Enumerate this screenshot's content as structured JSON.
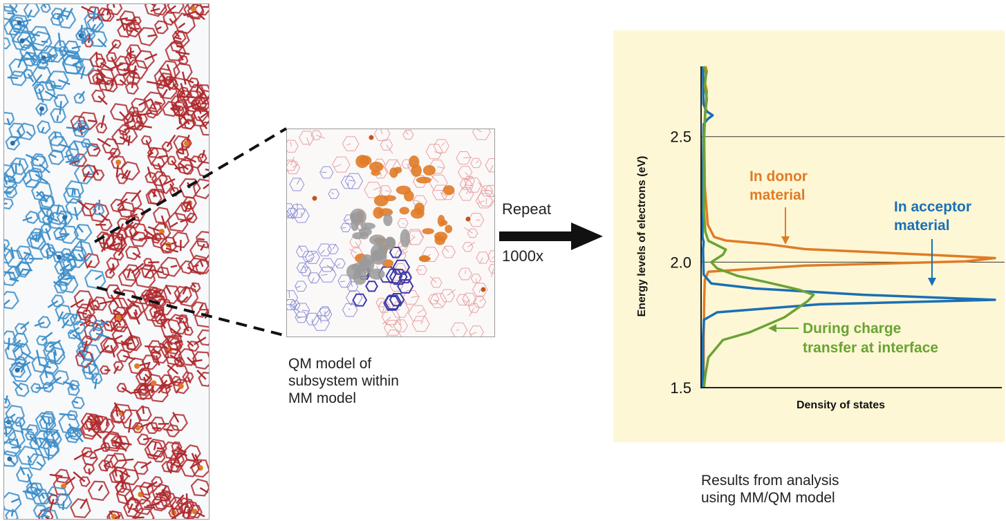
{
  "qm_panel": {
    "caption_lines": [
      "QM model of",
      "subsystem within",
      "MM model"
    ]
  },
  "process_arrow": {
    "label_top": "Repeat",
    "label_bottom": "1000x",
    "color": "#111111"
  },
  "results": {
    "caption_lines": [
      "Results from analysis",
      "using MM/QM model"
    ]
  },
  "colors": {
    "donor_orange": "#e07b27",
    "acceptor_blue": "#1a6fb5",
    "interface_green": "#6aa334",
    "mm_blue": "#3d8ec9",
    "mm_red": "#b02a2e",
    "chart_background": "#fdf7d5"
  },
  "chart_data": {
    "type": "line",
    "title": "",
    "xlabel": "Density of states",
    "ylabel": "Energy levels of electrons (eV)",
    "ylim": [
      1.5,
      2.78
    ],
    "yticks": [
      "1.5",
      "2.0",
      "2.5"
    ],
    "ytick_values": [
      1.5,
      2.0,
      2.5
    ],
    "gridlines_at": [
      2.0,
      2.5
    ],
    "series": [
      {
        "key": "donor",
        "label_lines": [
          "In donor",
          "material"
        ],
        "color": "#e07b27",
        "points": [
          [
            0.003,
            1.5
          ],
          [
            0.004,
            1.6
          ],
          [
            0.004,
            1.7
          ],
          [
            0.006,
            1.85
          ],
          [
            0.008,
            1.93
          ],
          [
            0.02,
            1.962
          ],
          [
            0.35,
            1.986
          ],
          [
            0.9,
            2.003
          ],
          [
            1.0,
            2.016
          ],
          [
            0.8,
            2.028
          ],
          [
            0.35,
            2.052
          ],
          [
            0.22,
            2.072
          ],
          [
            0.08,
            2.086
          ],
          [
            0.04,
            2.1
          ],
          [
            0.018,
            2.15
          ],
          [
            0.008,
            2.3
          ],
          [
            0.006,
            2.5
          ],
          [
            0.01,
            2.62
          ],
          [
            0.015,
            2.68
          ],
          [
            0.007,
            2.72
          ],
          [
            0.015,
            2.76
          ],
          [
            0.01,
            2.78
          ]
        ]
      },
      {
        "key": "acceptor",
        "label_lines": [
          "In acceptor",
          "material"
        ],
        "color": "#1a6fb5",
        "points": [
          [
            0.002,
            1.5
          ],
          [
            0.002,
            1.7
          ],
          [
            0.005,
            1.77
          ],
          [
            0.05,
            1.8
          ],
          [
            0.4,
            1.832
          ],
          [
            1.0,
            1.85
          ],
          [
            0.55,
            1.87
          ],
          [
            0.18,
            1.895
          ],
          [
            0.03,
            1.915
          ],
          [
            0.004,
            1.95
          ],
          [
            0.002,
            2.05
          ],
          [
            0.004,
            2.08
          ],
          [
            0.0,
            2.1
          ],
          [
            0.002,
            2.4
          ],
          [
            0.003,
            2.5
          ],
          [
            0.004,
            2.55
          ],
          [
            0.018,
            2.57
          ],
          [
            0.035,
            2.585
          ],
          [
            0.015,
            2.6
          ],
          [
            0.003,
            2.63
          ],
          [
            0.002,
            2.78
          ]
        ]
      },
      {
        "key": "interface",
        "label_lines": [
          "During charge",
          "transfer at interface"
        ],
        "color": "#6aa334",
        "points": [
          [
            0.005,
            1.5
          ],
          [
            0.01,
            1.55
          ],
          [
            0.02,
            1.62
          ],
          [
            0.07,
            1.69
          ],
          [
            0.16,
            1.72
          ],
          [
            0.28,
            1.78
          ],
          [
            0.36,
            1.845
          ],
          [
            0.38,
            1.87
          ],
          [
            0.33,
            1.89
          ],
          [
            0.22,
            1.92
          ],
          [
            0.12,
            1.945
          ],
          [
            0.05,
            1.975
          ],
          [
            0.03,
            2.0
          ],
          [
            0.07,
            2.03
          ],
          [
            0.08,
            2.05
          ],
          [
            0.02,
            2.085
          ],
          [
            0.01,
            2.12
          ],
          [
            0.005,
            2.2
          ],
          [
            0.005,
            2.5
          ],
          [
            0.01,
            2.6
          ],
          [
            0.015,
            2.65
          ],
          [
            0.008,
            2.7
          ],
          [
            0.012,
            2.75
          ],
          [
            0.005,
            2.78
          ]
        ]
      }
    ],
    "label_arrows": [
      {
        "series": "donor",
        "direction": "down"
      },
      {
        "series": "acceptor",
        "direction": "down"
      },
      {
        "series": "interface",
        "direction": "left"
      }
    ]
  }
}
